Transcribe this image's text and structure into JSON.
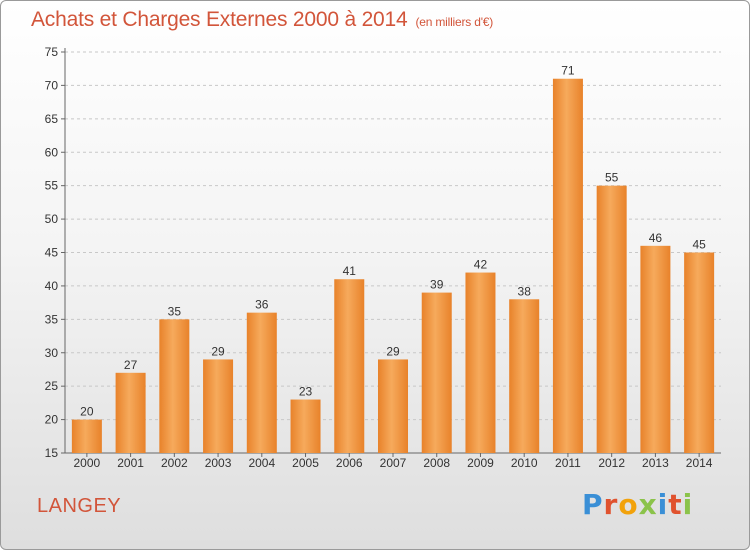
{
  "header": {
    "title": "Achats et Charges Externes 2000 à 2014",
    "unit": "(en milliers d'€)"
  },
  "footer": {
    "city": "LANGEY",
    "logo": "Proxiti",
    "logo_colors": [
      "#3a8fd6",
      "#e0522e",
      "#f2a20b",
      "#8bc34a",
      "#3a8fd6",
      "#e0522e",
      "#8bc34a"
    ]
  },
  "chart_data": {
    "type": "bar",
    "categories": [
      "2000",
      "2001",
      "2002",
      "2003",
      "2004",
      "2005",
      "2006",
      "2007",
      "2008",
      "2009",
      "2010",
      "2011",
      "2012",
      "2013",
      "2014"
    ],
    "values": [
      20,
      27,
      35,
      29,
      36,
      23,
      41,
      29,
      39,
      42,
      38,
      71,
      55,
      46,
      45
    ],
    "title": "Achats et Charges Externes 2000 à 2014",
    "ylim": [
      15,
      75
    ],
    "yticks": [
      15,
      20,
      25,
      30,
      35,
      40,
      45,
      50,
      55,
      60,
      65,
      70,
      75
    ],
    "grid": true,
    "bar_color": "#e8822a",
    "bar_color_light": "#f6aa5c"
  }
}
